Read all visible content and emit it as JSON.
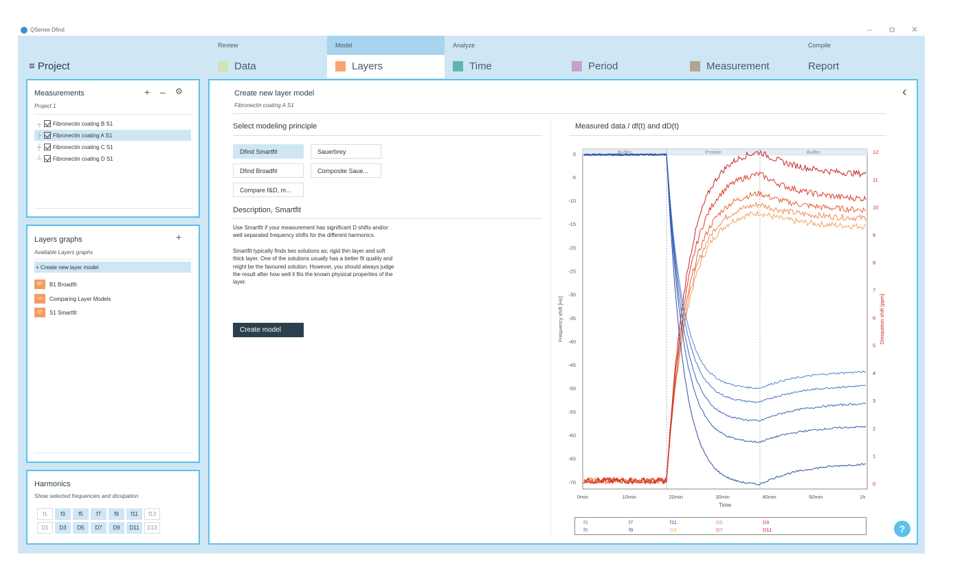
{
  "app": {
    "title": "QSense Dfind",
    "minimize": "–",
    "restore": "⧉",
    "close": "✕"
  },
  "project": {
    "label": "≡ Project"
  },
  "nav": [
    {
      "group": "Review",
      "label": "Data",
      "color": "#cfe3b6",
      "active": false
    },
    {
      "group": "Model",
      "label": "Layers",
      "color": "#f9a46f",
      "active": true
    },
    {
      "group": "Analyze",
      "label": "Time",
      "color": "#5fb5b2",
      "active": false
    },
    {
      "group": "",
      "label": "Period",
      "color": "#c4a1cf",
      "active": false
    },
    {
      "group": "",
      "label": "Measurement",
      "color": "#b2a48e",
      "active": false
    },
    {
      "group": "Compile",
      "label": "Report",
      "color": "",
      "active": false
    }
  ],
  "measurements": {
    "title": "Measurements",
    "subtitle": "Project 1",
    "add": "+",
    "remove": "–",
    "settings": "⚙",
    "items": [
      {
        "label": "Fibronectin coating B S1",
        "selected": false
      },
      {
        "label": "Fibronectin coating A S1",
        "selected": true
      },
      {
        "label": "Fibronectin coating C S1",
        "selected": false
      },
      {
        "label": "Fibronectin coating D S1",
        "selected": false
      }
    ]
  },
  "layers_graphs": {
    "title": "Layers graphs",
    "subtitle": "Available Layers graphs",
    "add": "+",
    "create": "+ Create new layer model",
    "items": [
      {
        "badge": "BF",
        "label": "B1 Broadfit"
      },
      {
        "badge": "<>",
        "label": "Comparing Layer Models"
      },
      {
        "badge": "SF",
        "label": "S1 Smartfit"
      }
    ]
  },
  "harmonics": {
    "title": "Harmonics",
    "subtitle": "Show selected frequencies and dissipation",
    "freq": [
      {
        "l": "f1",
        "on": false
      },
      {
        "l": "f3",
        "on": true
      },
      {
        "l": "f5",
        "on": true
      },
      {
        "l": "f7",
        "on": true
      },
      {
        "l": "f9",
        "on": true
      },
      {
        "l": "f11",
        "on": true
      },
      {
        "l": "f13",
        "on": false
      }
    ],
    "diss": [
      {
        "l": "D1",
        "on": false
      },
      {
        "l": "D3",
        "on": true
      },
      {
        "l": "D5",
        "on": true
      },
      {
        "l": "D7",
        "on": true
      },
      {
        "l": "D9",
        "on": true
      },
      {
        "l": "D11",
        "on": true
      },
      {
        "l": "D13",
        "on": false
      }
    ]
  },
  "main": {
    "title": "Create new layer model",
    "subtitle": "Fibronectin coating A S1",
    "collapse": "‹",
    "principle_heading": "Select modeling principle",
    "buttons": {
      "smartfit": "Dfind Smartfit",
      "sauerbrey": "Sauerbrey",
      "broadfit": "Dfind Broadfit",
      "composite": "Composite Saue...",
      "compare": "Compare f&D, m..."
    },
    "desc_heading": "Description, Smartfit",
    "desc_p1": "Use Smartfit if your measurement has significant D shifts and/or well separated frequency shifts for the different harmonics.",
    "desc_p2": "Smartfit typically finds two solutions as; rigid thin layer and soft thick layer. One of the solutions usually has a better fit quality and might be the favoured solution. However, you should always judge the result after how well it fits the known physical properties of the layer.",
    "create_button": "Create model",
    "chart_heading": "Measured data / df(t) and dD(t)",
    "help": "?"
  },
  "chart_data": {
    "type": "line",
    "xlabel": "Time",
    "ylabel": "Frequency shift [Hz]",
    "y2label": "Dissipation shift [ppm]",
    "xticks": [
      {
        "v": 0,
        "l": "0min"
      },
      {
        "v": 10,
        "l": "10min"
      },
      {
        "v": 20,
        "l": "20min"
      },
      {
        "v": 30,
        "l": "30min"
      },
      {
        "v": 40,
        "l": "40min"
      },
      {
        "v": 50,
        "l": "50min"
      },
      {
        "v": 60,
        "l": "1h"
      }
    ],
    "xlim": [
      0,
      61
    ],
    "ylim": [
      -71.5,
      1
    ],
    "y2lim": [
      -0.2,
      12.1
    ],
    "yticks": [
      0,
      -5,
      -10,
      -15,
      -20,
      -25,
      -30,
      -35,
      -40,
      -45,
      -50,
      -55,
      -60,
      -65,
      -70
    ],
    "y2ticks": [
      0,
      1,
      2,
      3,
      4,
      5,
      6,
      7,
      8,
      9,
      10,
      11,
      12
    ],
    "phases": [
      {
        "label": "Buffer",
        "x0": 0,
        "x1": 18
      },
      {
        "label": "Protein",
        "x0": 18,
        "x1": 38
      },
      {
        "label": "Buffer",
        "x0": 38,
        "x1": 61
      }
    ],
    "freq_series": [
      {
        "name": "f3",
        "color": "#4f83cf",
        "end_prot": -50,
        "end": -46.5
      },
      {
        "name": "f5",
        "color": "#4372c4",
        "end_prot": -53,
        "end": -49.5
      },
      {
        "name": "f7",
        "color": "#3a64b8",
        "end_prot": -57,
        "end": -53.3
      },
      {
        "name": "f9",
        "color": "#3558ad",
        "end_prot": -61.5,
        "end": -58.2
      },
      {
        "name": "f11",
        "color": "#2e4ca3",
        "end_prot": -70.5,
        "end": -66.2
      }
    ],
    "diss_series": [
      {
        "name": "D3",
        "color": "#f2a45f",
        "end_prot": 9.8,
        "end": 9.3
      },
      {
        "name": "D5",
        "color": "#ef8a4f",
        "end_prot": 10.1,
        "end": 9.6
      },
      {
        "name": "D7",
        "color": "#e85e36",
        "end_prot": 10.5,
        "end": 9.9
      },
      {
        "name": "D9",
        "color": "#d73a2b",
        "end_prot": 11.2,
        "end": 10.3
      },
      {
        "name": "D11",
        "color": "#c7231e",
        "end_prot": 12.0,
        "end": 11.2
      }
    ],
    "legend": [
      {
        "l": "f3",
        "c": "#4f83cf"
      },
      {
        "l": "f5",
        "c": "#4372c4"
      },
      {
        "l": "f7",
        "c": "#3a64b8"
      },
      {
        "l": "f9",
        "c": "#3558ad"
      },
      {
        "l": "f11",
        "c": "#2e4ca3"
      },
      {
        "l": "D3",
        "c": "#f2a45f"
      },
      {
        "l": "D5",
        "c": "#ef8a4f"
      },
      {
        "l": "D7",
        "c": "#e85e36"
      },
      {
        "l": "D9",
        "c": "#d73a2b"
      },
      {
        "l": "D11",
        "c": "#c7231e"
      }
    ]
  }
}
